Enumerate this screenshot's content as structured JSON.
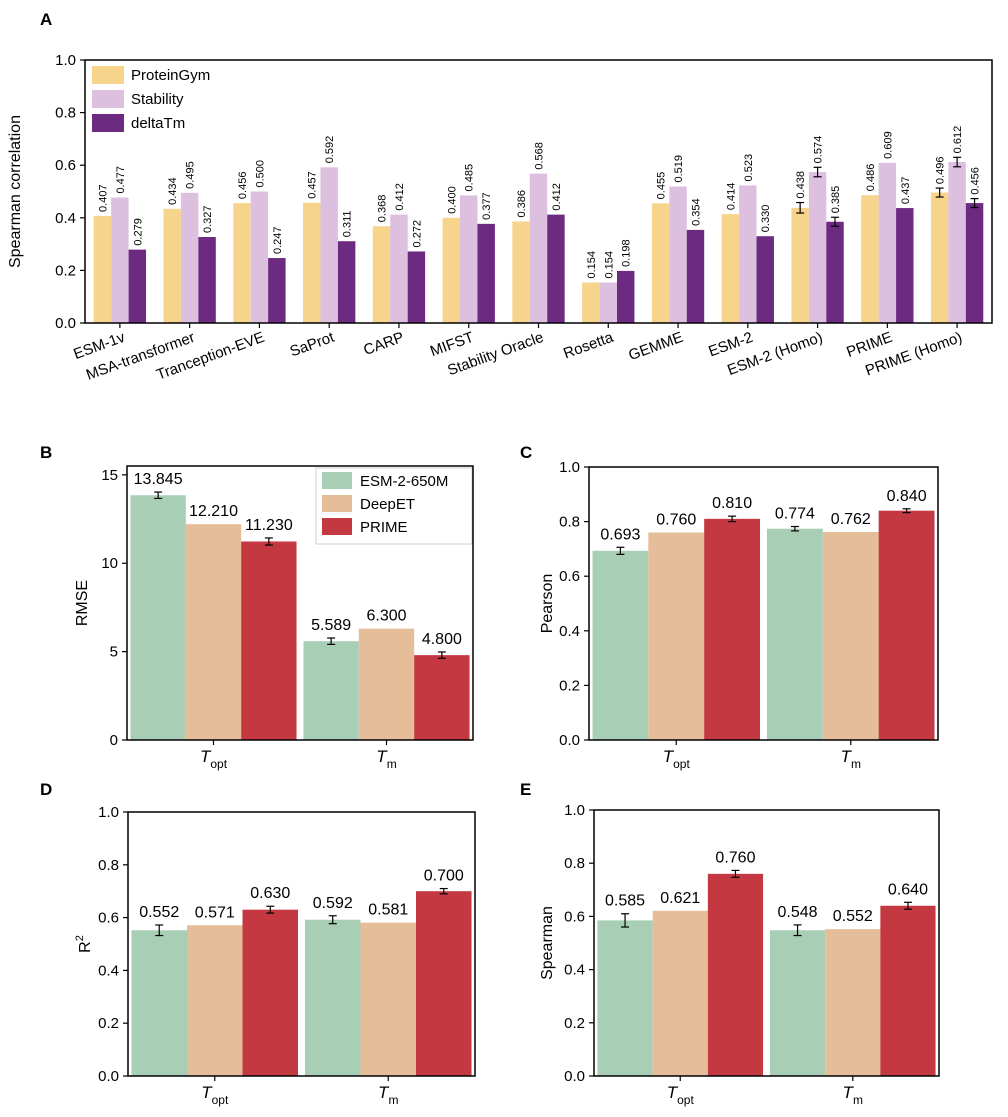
{
  "chart_data": [
    {
      "panel": "A",
      "type": "bar",
      "ylabel": "Spearman correlation",
      "ylim": [
        0,
        1.0
      ],
      "yticks": [
        "0.0",
        "0.2",
        "0.4",
        "0.6",
        "0.8",
        "1.0"
      ],
      "legend_position": "top-left",
      "colors": [
        "#F7D48C",
        "#DDC0DF",
        "#6C2B80"
      ],
      "categories": [
        "ESM-1v",
        "MSA-transformer",
        "Tranception-EVE",
        "SaProt",
        "CARP",
        "MIFST",
        "Stability Oracle",
        "Rosetta",
        "GEMME",
        "ESM-2",
        "ESM-2 (Homo)",
        "PRIME",
        "PRIME (Homo)"
      ],
      "series": [
        {
          "name": "ProteinGym",
          "values": [
            0.407,
            0.434,
            0.456,
            0.457,
            0.368,
            0.4,
            0.386,
            0.154,
            0.455,
            0.414,
            0.438,
            0.486,
            0.496
          ],
          "labels": [
            "0.407",
            "0.434",
            "0.456",
            "0.457",
            "0.368",
            "0.400",
            "0.386",
            "0.154",
            "0.455",
            "0.414",
            "0.438",
            "0.486",
            "0.496"
          ],
          "errors": [
            0,
            0,
            0,
            0,
            0,
            0,
            0,
            0,
            0,
            0,
            0.02,
            0,
            0.017
          ]
        },
        {
          "name": "Stability",
          "values": [
            0.477,
            0.495,
            0.5,
            0.592,
            0.412,
            0.485,
            0.568,
            0.154,
            0.519,
            0.523,
            0.574,
            0.609,
            0.612
          ],
          "labels": [
            "0.477",
            "0.495",
            "0.500",
            "0.592",
            "0.412",
            "0.485",
            "0.568",
            "0.154",
            "0.519",
            "0.523",
            "0.574",
            "0.609",
            "0.612"
          ],
          "errors": [
            0,
            0,
            0,
            0,
            0,
            0,
            0,
            0,
            0,
            0,
            0.018,
            0,
            0.018
          ]
        },
        {
          "name": "deltaTm",
          "values": [
            0.279,
            0.327,
            0.247,
            0.311,
            0.272,
            0.377,
            0.412,
            0.198,
            0.354,
            0.33,
            0.385,
            0.437,
            0.456
          ],
          "labels": [
            "0.279",
            "0.327",
            "0.247",
            "0.311",
            "0.272",
            "0.377",
            "0.412",
            "0.198",
            "0.354",
            "0.330",
            "0.385",
            "0.437",
            "0.456"
          ],
          "errors": [
            0,
            0,
            0,
            0,
            0,
            0,
            0,
            0,
            0,
            0,
            0.017,
            0,
            0.017
          ]
        }
      ]
    },
    {
      "panel": "B",
      "type": "bar",
      "ylabel": "RMSE",
      "ylim": [
        0,
        15.5
      ],
      "yticks": [
        "0",
        "5",
        "10",
        "15"
      ],
      "ytick_values": [
        0,
        5,
        10,
        15
      ],
      "legend_position": "top-right",
      "colors": [
        "#A8CFB5",
        "#E6BD99",
        "#C43841"
      ],
      "categories": [
        [
          "T",
          "opt"
        ],
        [
          "T",
          "m"
        ]
      ],
      "series": [
        {
          "name": "ESM-2-650M",
          "values": [
            13.845,
            5.589
          ],
          "labels": [
            "13.845",
            "5.589"
          ],
          "errors": [
            0.18,
            0.18
          ]
        },
        {
          "name": "DeepET",
          "values": [
            12.21,
            6.3
          ],
          "labels": [
            "12.210",
            "6.300"
          ],
          "errors": [
            0,
            0
          ]
        },
        {
          "name": "PRIME",
          "values": [
            11.23,
            4.8
          ],
          "labels": [
            "11.230",
            "4.800"
          ],
          "errors": [
            0.2,
            0.18
          ]
        }
      ]
    },
    {
      "panel": "C",
      "type": "bar",
      "ylabel": "Pearson",
      "ylim": [
        0,
        1.0
      ],
      "yticks": [
        "0.0",
        "0.2",
        "0.4",
        "0.6",
        "0.8",
        "1.0"
      ],
      "ytick_values": [
        0,
        0.2,
        0.4,
        0.6,
        0.8,
        1.0
      ],
      "colors": [
        "#A8CFB5",
        "#E6BD99",
        "#C43841"
      ],
      "categories": [
        [
          "T",
          "opt"
        ],
        [
          "T",
          "m"
        ]
      ],
      "series": [
        {
          "name": "ESM-2-650M",
          "values": [
            0.693,
            0.774
          ],
          "labels": [
            "0.693",
            "0.774"
          ],
          "errors": [
            0.013,
            0.008
          ]
        },
        {
          "name": "DeepET",
          "values": [
            0.76,
            0.762
          ],
          "labels": [
            "0.760",
            "0.762"
          ],
          "errors": [
            0,
            0
          ]
        },
        {
          "name": "PRIME",
          "values": [
            0.81,
            0.84
          ],
          "labels": [
            "0.810",
            "0.840"
          ],
          "errors": [
            0.01,
            0.007
          ]
        }
      ]
    },
    {
      "panel": "D",
      "type": "bar",
      "ylabel": [
        "R",
        "2"
      ],
      "ylim": [
        0,
        1.0
      ],
      "yticks": [
        "0.0",
        "0.2",
        "0.4",
        "0.6",
        "0.8",
        "1.0"
      ],
      "ytick_values": [
        0,
        0.2,
        0.4,
        0.6,
        0.8,
        1.0
      ],
      "colors": [
        "#A8CFB5",
        "#E6BD99",
        "#C43841"
      ],
      "categories": [
        [
          "T",
          "opt"
        ],
        [
          "T",
          "m"
        ]
      ],
      "series": [
        {
          "name": "ESM-2-650M",
          "values": [
            0.552,
            0.592
          ],
          "labels": [
            "0.552",
            "0.592"
          ],
          "errors": [
            0.02,
            0.015
          ]
        },
        {
          "name": "DeepET",
          "values": [
            0.571,
            0.581
          ],
          "labels": [
            "0.571",
            "0.581"
          ],
          "errors": [
            0,
            0
          ]
        },
        {
          "name": "PRIME",
          "values": [
            0.63,
            0.7
          ],
          "labels": [
            "0.630",
            "0.700"
          ],
          "errors": [
            0.013,
            0.01
          ]
        }
      ]
    },
    {
      "panel": "E",
      "type": "bar",
      "ylabel": "Spearman",
      "ylim": [
        0,
        1.0
      ],
      "yticks": [
        "0.0",
        "0.2",
        "0.4",
        "0.6",
        "0.8",
        "1.0"
      ],
      "ytick_values": [
        0,
        0.2,
        0.4,
        0.6,
        0.8,
        1.0
      ],
      "colors": [
        "#A8CFB5",
        "#E6BD99",
        "#C43841"
      ],
      "categories": [
        [
          "T",
          "opt"
        ],
        [
          "T",
          "m"
        ]
      ],
      "series": [
        {
          "name": "ESM-2-650M",
          "values": [
            0.585,
            0.548
          ],
          "labels": [
            "0.585",
            "0.548"
          ],
          "errors": [
            0.025,
            0.02
          ]
        },
        {
          "name": "DeepET",
          "values": [
            0.621,
            0.552
          ],
          "labels": [
            "0.621",
            "0.552"
          ],
          "errors": [
            0,
            0
          ]
        },
        {
          "name": "PRIME",
          "values": [
            0.76,
            0.64
          ],
          "labels": [
            "0.760",
            "0.640"
          ],
          "errors": [
            0.013,
            0.013
          ]
        }
      ]
    }
  ]
}
